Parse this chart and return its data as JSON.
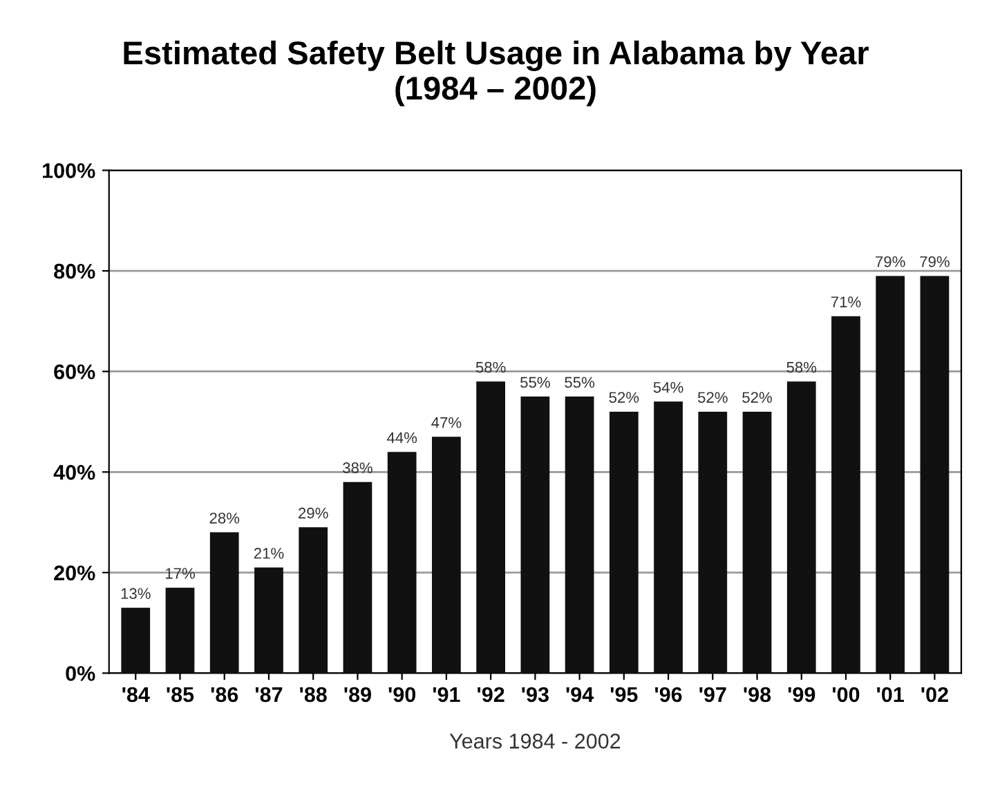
{
  "chart_data": {
    "type": "bar",
    "title": "Estimated Safety Belt Usage in Alabama by Year\n(1984 – 2002)",
    "xlabel": "Years 1984 - 2002",
    "categories": [
      "'84",
      "'85",
      "'86",
      "'87",
      "'88",
      "'89",
      "'90",
      "'91",
      "'92",
      "'93",
      "'94",
      "'95",
      "'96",
      "'97",
      "'98",
      "'99",
      "'00",
      "'01",
      "'02"
    ],
    "values": [
      13,
      17,
      28,
      21,
      29,
      38,
      44,
      47,
      58,
      55,
      55,
      52,
      54,
      52,
      52,
      58,
      71,
      79,
      79
    ],
    "value_labels": [
      "13%",
      "17%",
      "28%",
      "21%",
      "29%",
      "38%",
      "44%",
      "47%",
      "58%",
      "55%",
      "55%",
      "52%",
      "54%",
      "52%",
      "52%",
      "58%",
      "71%",
      "79%",
      "79%"
    ],
    "color": "#111111",
    "ylim": [
      0,
      100
    ],
    "yticks": [
      {
        "value": 0,
        "label": "0%"
      },
      {
        "value": 20,
        "label": "20%"
      },
      {
        "value": 40,
        "label": "40%"
      },
      {
        "value": 60,
        "label": "60%"
      },
      {
        "value": 80,
        "label": "80%"
      },
      {
        "value": 100,
        "label": "100%"
      }
    ],
    "grid": "y"
  }
}
